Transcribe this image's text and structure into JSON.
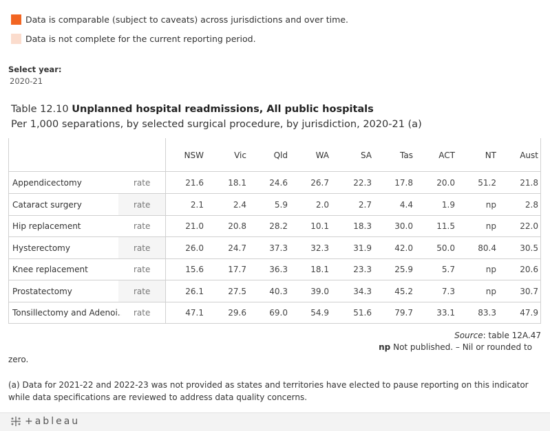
{
  "legend": [
    {
      "label": "Data is comparable (subject to caveats) across jurisdictions and over time.",
      "color": "#f26522"
    },
    {
      "label": "Data is not complete for the current reporting period.",
      "color": "#fbdccd"
    }
  ],
  "selector": {
    "label": "Select year:",
    "value": "2020-21"
  },
  "table": {
    "title_prefix": "Table 12.10",
    "title_bold": "Unplanned hospital readmissions, All public hospitals",
    "subtitle": "Per 1,000 separations, by selected surgical procedure, by jurisdiction, 2020-21 (a)",
    "columns": [
      "NSW",
      "Vic",
      "Qld",
      "WA",
      "SA",
      "Tas",
      "ACT",
      "NT",
      "Aust"
    ],
    "rows": [
      {
        "name": "Appendicectomy",
        "measure": "rate",
        "values": [
          "21.6",
          "18.1",
          "24.6",
          "26.7",
          "22.3",
          "17.8",
          "20.0",
          "51.2",
          "21.8"
        ]
      },
      {
        "name": "Cataract surgery",
        "measure": "rate",
        "values": [
          "2.1",
          "2.4",
          "5.9",
          "2.0",
          "2.7",
          "4.4",
          "1.9",
          "np",
          "2.8"
        ]
      },
      {
        "name": "Hip replacement",
        "measure": "rate",
        "values": [
          "21.0",
          "20.8",
          "28.2",
          "10.1",
          "18.3",
          "30.0",
          "11.5",
          "np",
          "22.0"
        ]
      },
      {
        "name": "Hysterectomy",
        "measure": "rate",
        "values": [
          "26.0",
          "24.7",
          "37.3",
          "32.3",
          "31.9",
          "42.0",
          "50.0",
          "80.4",
          "30.5"
        ]
      },
      {
        "name": "Knee replacement",
        "measure": "rate",
        "values": [
          "15.6",
          "17.7",
          "36.3",
          "18.1",
          "23.3",
          "25.9",
          "5.7",
          "np",
          "20.6"
        ]
      },
      {
        "name": "Prostatectomy",
        "measure": "rate",
        "values": [
          "26.1",
          "27.5",
          "40.3",
          "39.0",
          "34.3",
          "45.2",
          "7.3",
          "np",
          "30.7"
        ]
      },
      {
        "name": "Tonsillectomy and Adenoi..",
        "measure": "rate",
        "values": [
          "47.1",
          "29.6",
          "69.0",
          "54.9",
          "51.6",
          "79.7",
          "33.1",
          "83.3",
          "47.9"
        ]
      }
    ]
  },
  "notes": {
    "source_label": "Source",
    "source_text": ": table 12A.47",
    "np_abbr": "np",
    "np_text": "Not published. – Nil or rounded to",
    "zero_text": "zero.",
    "footnote": "(a) Data for 2021-22 and 2022-23 was not provided as states and territories have elected to pause reporting on this indicator while data specifications are reviewed to address data quality concerns."
  },
  "footer": {
    "brand": "+ableau",
    "icon": "tableau-logo-icon"
  }
}
